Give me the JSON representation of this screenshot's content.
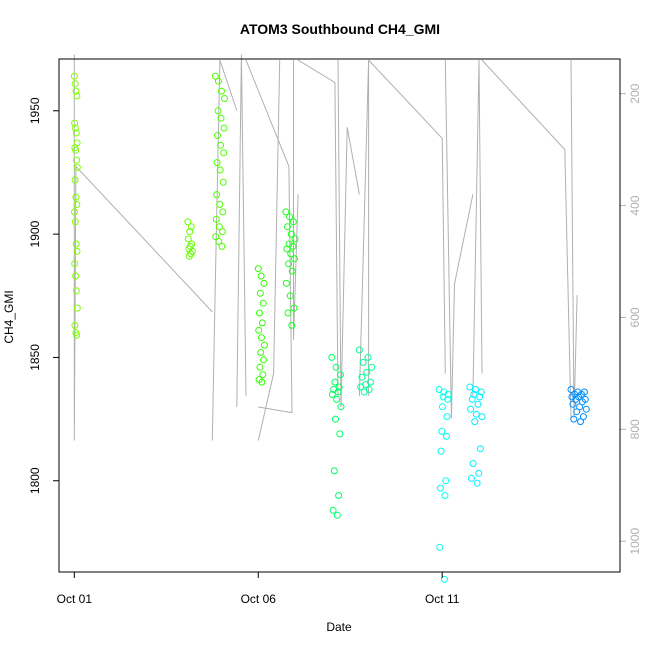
{
  "chart_data": {
    "type": "scatter",
    "title": "ATOM3 Southbound CH4_GMI",
    "xlabel": "Date",
    "ylabel": "CH4_GMI",
    "x_axis_type": "date",
    "xlim": [
      "2017-09-30T14:00",
      "2017-10-15T20:00"
    ],
    "ylim": [
      1763,
      1971
    ],
    "x_ticks": [
      {
        "date": "2017-10-01",
        "label": "Oct 01"
      },
      {
        "date": "2017-10-06",
        "label": "Oct 06"
      },
      {
        "date": "2017-10-11",
        "label": "Oct 11"
      }
    ],
    "y_ticks": [
      1800,
      1850,
      1900,
      1950
    ],
    "secondary_y": {
      "reversed": true,
      "ylim": [
        1055,
        138
      ],
      "ticks": [
        200,
        400,
        600,
        800,
        1000
      ],
      "color": "#b0b0b0",
      "lines": [
        [
          [
            "2017-10-01T00:00",
            130
          ],
          [
            "2017-10-01T00:00",
            820
          ],
          [
            "2017-10-01T01:00",
            330
          ],
          [
            "2017-10-04T18:00",
            590
          ]
        ],
        [
          [
            "2017-10-04T18:00",
            820
          ],
          [
            "2017-10-04T20:00",
            540
          ],
          [
            "2017-10-04T23:00",
            140
          ],
          [
            "2017-10-05T10:00",
            230
          ]
        ],
        [
          [
            "2017-10-05T10:00",
            760
          ],
          [
            "2017-10-05T13:00",
            130
          ],
          [
            "2017-10-05T16:00",
            740
          ]
        ],
        [
          [
            "2017-10-05T16:00",
            140
          ],
          [
            "2017-10-06T20:00",
            330
          ],
          [
            "2017-10-06T22:00",
            770
          ],
          [
            "2017-10-06T00:00",
            760
          ]
        ],
        [
          [
            "2017-10-06T00:00",
            820
          ],
          [
            "2017-10-06T10:00",
            700
          ],
          [
            "2017-10-06T14:00",
            140
          ]
        ],
        [
          [
            "2017-10-06T23:00",
            140
          ],
          [
            "2017-10-06T23:00",
            640
          ],
          [
            "2017-10-07T02:00",
            380
          ]
        ],
        [
          [
            "2017-10-07T02:00",
            140
          ],
          [
            "2017-10-08T02:00",
            180
          ],
          [
            "2017-10-08T04:00",
            740
          ]
        ],
        [
          [
            "2017-10-08T04:00",
            140
          ],
          [
            "2017-10-08T06:00",
            760
          ],
          [
            "2017-10-08T10:00",
            260
          ],
          [
            "2017-10-08T18:00",
            380
          ]
        ],
        [
          [
            "2017-10-08T18:00",
            740
          ],
          [
            "2017-10-09T00:00",
            140
          ],
          [
            "2017-10-09T00:00",
            740
          ]
        ],
        [
          [
            "2017-10-09T00:00",
            140
          ],
          [
            "2017-10-11T00:00",
            280
          ],
          [
            "2017-10-11T02:00",
            700
          ]
        ],
        [
          [
            "2017-10-11T02:00",
            140
          ],
          [
            "2017-10-11T06:00",
            780
          ],
          [
            "2017-10-11T08:00",
            540
          ],
          [
            "2017-10-11T20:00",
            380
          ]
        ],
        [
          [
            "2017-10-11T20:00",
            740
          ],
          [
            "2017-10-12T00:00",
            140
          ],
          [
            "2017-10-12T02:00",
            700
          ]
        ],
        [
          [
            "2017-10-12T02:00",
            140
          ],
          [
            "2017-10-14T08:00",
            300
          ],
          [
            "2017-10-14T12:00",
            780
          ]
        ],
        [
          [
            "2017-10-14T12:00",
            140
          ],
          [
            "2017-10-14T14:00",
            780
          ],
          [
            "2017-10-14T16:00",
            560
          ]
        ]
      ]
    },
    "series": [
      {
        "name": "",
        "color": "#7fff00",
        "x_range": [
          "2017-10-01T00:00",
          "2017-10-01T02:00"
        ],
        "y": [
          1964,
          1961,
          1958,
          1956,
          1945,
          1943,
          1941,
          1937,
          1935,
          1934,
          1930,
          1927,
          1922,
          1915,
          1912,
          1909,
          1905,
          1896,
          1893,
          1888,
          1883,
          1877,
          1870,
          1863,
          1860,
          1859
        ]
      },
      {
        "name": "",
        "color": "#66ff00",
        "x_range": [
          "2017-10-04T02:00",
          "2017-10-04T05:00"
        ],
        "y": [
          1905,
          1903,
          1901,
          1898,
          1896,
          1895,
          1894,
          1893,
          1892,
          1891
        ]
      },
      {
        "name": "",
        "color": "#4dff00",
        "x_range": [
          "2017-10-04T20:00",
          "2017-10-05T02:00"
        ],
        "y": [
          1964,
          1962,
          1958,
          1955,
          1950,
          1947,
          1943,
          1940,
          1936,
          1933,
          1929,
          1926,
          1921,
          1916,
          1912,
          1909,
          1906,
          1903,
          1901,
          1899,
          1897,
          1895
        ]
      },
      {
        "name": "",
        "color": "#33ff00",
        "x_range": [
          "2017-10-06T00:00",
          "2017-10-06T04:00"
        ],
        "y": [
          1886,
          1883,
          1880,
          1876,
          1872,
          1868,
          1864,
          1861,
          1858,
          1855,
          1852,
          1849,
          1846,
          1843,
          1841,
          1840
        ]
      },
      {
        "name": "",
        "color": "#1aff1a",
        "x_range": [
          "2017-10-06T18:00",
          "2017-10-07T00:00"
        ],
        "y": [
          1909,
          1907,
          1905,
          1903,
          1900,
          1898,
          1896,
          1895,
          1894,
          1892,
          1890,
          1888,
          1885,
          1880,
          1875,
          1870,
          1868,
          1863
        ]
      },
      {
        "name": "",
        "color": "#00ff66",
        "x_range": [
          "2017-10-08T00:00",
          "2017-10-08T06:00"
        ],
        "y": [
          1850,
          1846,
          1843,
          1840,
          1838,
          1837,
          1836,
          1835,
          1833,
          1830,
          1825,
          1819,
          1804,
          1794,
          1788,
          1786
        ]
      },
      {
        "name": "",
        "color": "#00ff99",
        "x_range": [
          "2017-10-08T18:00",
          "2017-10-09T02:00"
        ],
        "y": [
          1853,
          1850,
          1848,
          1846,
          1844,
          1842,
          1840,
          1839,
          1838,
          1837,
          1836
        ]
      },
      {
        "name": "",
        "color": "#00ffee",
        "x_range": [
          "2017-10-10T22:00",
          "2017-10-11T04:00"
        ],
        "y": [
          1837,
          1836,
          1835,
          1834,
          1833,
          1830,
          1826,
          1820,
          1818,
          1812,
          1800,
          1797,
          1794,
          1773,
          1760
        ]
      },
      {
        "name": "",
        "color": "#00f0ff",
        "x_range": [
          "2017-10-11T18:00",
          "2017-10-12T02:00"
        ],
        "y": [
          1838,
          1837,
          1836,
          1835,
          1834,
          1833,
          1831,
          1829,
          1827,
          1826,
          1824,
          1813,
          1807,
          1803,
          1801,
          1799
        ]
      },
      {
        "name": "",
        "color": "#0090ff",
        "x_range": [
          "2017-10-14T12:00",
          "2017-10-14T22:00"
        ],
        "y": [
          1837,
          1836,
          1836,
          1835,
          1835,
          1834,
          1834,
          1833,
          1833,
          1832,
          1831,
          1830,
          1829,
          1828,
          1826,
          1825,
          1824
        ]
      }
    ]
  }
}
